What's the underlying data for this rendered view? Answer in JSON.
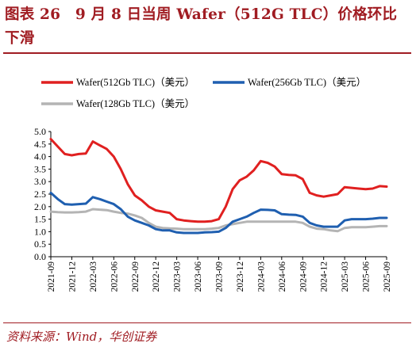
{
  "figure": {
    "title": "图表 26　9 月 8 日当周 Wafer（512G TLC）价格环比下滑",
    "source": "资料来源：Wind，华创证券",
    "accent_color": "#a01c22"
  },
  "chart_data": {
    "type": "line",
    "title": "",
    "xlabel": "",
    "ylabel": "",
    "ylim": [
      0,
      5
    ],
    "yticks": [
      "0.0",
      "0.5",
      "1.0",
      "1.5",
      "2.0",
      "2.5",
      "3.0",
      "3.5",
      "4.0",
      "4.5",
      "5.0"
    ],
    "xticks": [
      "2021-09",
      "2021-12",
      "2022-03",
      "2022-06",
      "2022-09",
      "2022-12",
      "2023-03",
      "2023-06",
      "2023-09",
      "2023-12",
      "2024-03",
      "2024-06",
      "2024-09",
      "2024-12",
      "2025-03",
      "2025-06",
      "2025-09"
    ],
    "x_range": [
      "2021-09",
      "2025-09"
    ],
    "grid": false,
    "legend_position": "top",
    "series": [
      {
        "name": "Wafer(512Gb TLC)（美元）",
        "color": "#e02020",
        "points": [
          [
            "2021-09",
            4.7
          ],
          [
            "2021-10",
            4.4
          ],
          [
            "2021-11",
            4.1
          ],
          [
            "2021-12",
            4.05
          ],
          [
            "2022-01",
            4.1
          ],
          [
            "2022-02",
            4.12
          ],
          [
            "2022-03",
            4.6
          ],
          [
            "2022-04",
            4.45
          ],
          [
            "2022-05",
            4.3
          ],
          [
            "2022-06",
            4.0
          ],
          [
            "2022-07",
            3.5
          ],
          [
            "2022-08",
            2.9
          ],
          [
            "2022-09",
            2.45
          ],
          [
            "2022-10",
            2.25
          ],
          [
            "2022-11",
            2.0
          ],
          [
            "2022-12",
            1.85
          ],
          [
            "2023-01",
            1.8
          ],
          [
            "2023-02",
            1.75
          ],
          [
            "2023-03",
            1.5
          ],
          [
            "2023-04",
            1.45
          ],
          [
            "2023-05",
            1.42
          ],
          [
            "2023-06",
            1.4
          ],
          [
            "2023-07",
            1.4
          ],
          [
            "2023-08",
            1.42
          ],
          [
            "2023-09",
            1.5
          ],
          [
            "2023-10",
            2.0
          ],
          [
            "2023-11",
            2.7
          ],
          [
            "2023-12",
            3.05
          ],
          [
            "2024-01",
            3.2
          ],
          [
            "2024-02",
            3.45
          ],
          [
            "2024-03",
            3.82
          ],
          [
            "2024-04",
            3.75
          ],
          [
            "2024-05",
            3.6
          ],
          [
            "2024-06",
            3.3
          ],
          [
            "2024-07",
            3.27
          ],
          [
            "2024-08",
            3.25
          ],
          [
            "2024-09",
            3.1
          ],
          [
            "2024-10",
            2.55
          ],
          [
            "2024-11",
            2.45
          ],
          [
            "2024-12",
            2.4
          ],
          [
            "2025-01",
            2.45
          ],
          [
            "2025-02",
            2.5
          ],
          [
            "2025-03",
            2.78
          ],
          [
            "2025-04",
            2.75
          ],
          [
            "2025-05",
            2.72
          ],
          [
            "2025-06",
            2.7
          ],
          [
            "2025-07",
            2.72
          ],
          [
            "2025-08",
            2.82
          ],
          [
            "2025-09",
            2.8
          ]
        ]
      },
      {
        "name": "Wafer(256Gb TLC)（美元）",
        "color": "#1f5fb0",
        "points": [
          [
            "2021-09",
            2.55
          ],
          [
            "2021-10",
            2.3
          ],
          [
            "2021-11",
            2.1
          ],
          [
            "2021-12",
            2.08
          ],
          [
            "2022-01",
            2.1
          ],
          [
            "2022-02",
            2.12
          ],
          [
            "2022-03",
            2.38
          ],
          [
            "2022-04",
            2.3
          ],
          [
            "2022-05",
            2.2
          ],
          [
            "2022-06",
            2.1
          ],
          [
            "2022-07",
            1.9
          ],
          [
            "2022-08",
            1.6
          ],
          [
            "2022-09",
            1.45
          ],
          [
            "2022-10",
            1.35
          ],
          [
            "2022-11",
            1.25
          ],
          [
            "2022-12",
            1.1
          ],
          [
            "2023-01",
            1.05
          ],
          [
            "2023-02",
            1.05
          ],
          [
            "2023-03",
            0.97
          ],
          [
            "2023-04",
            0.95
          ],
          [
            "2023-05",
            0.95
          ],
          [
            "2023-06",
            0.95
          ],
          [
            "2023-07",
            0.97
          ],
          [
            "2023-08",
            0.98
          ],
          [
            "2023-09",
            1.0
          ],
          [
            "2023-10",
            1.15
          ],
          [
            "2023-11",
            1.4
          ],
          [
            "2023-12",
            1.5
          ],
          [
            "2024-01",
            1.6
          ],
          [
            "2024-02",
            1.75
          ],
          [
            "2024-03",
            1.88
          ],
          [
            "2024-04",
            1.87
          ],
          [
            "2024-05",
            1.85
          ],
          [
            "2024-06",
            1.7
          ],
          [
            "2024-07",
            1.68
          ],
          [
            "2024-08",
            1.67
          ],
          [
            "2024-09",
            1.6
          ],
          [
            "2024-10",
            1.35
          ],
          [
            "2024-11",
            1.25
          ],
          [
            "2024-12",
            1.2
          ],
          [
            "2025-01",
            1.2
          ],
          [
            "2025-02",
            1.2
          ],
          [
            "2025-03",
            1.45
          ],
          [
            "2025-04",
            1.5
          ],
          [
            "2025-05",
            1.5
          ],
          [
            "2025-06",
            1.5
          ],
          [
            "2025-07",
            1.52
          ],
          [
            "2025-08",
            1.55
          ],
          [
            "2025-09",
            1.55
          ]
        ]
      },
      {
        "name": "Wafer(128Gb TLC)（美元）",
        "color": "#b4b4b4",
        "points": [
          [
            "2021-09",
            1.8
          ],
          [
            "2021-10",
            1.78
          ],
          [
            "2021-11",
            1.77
          ],
          [
            "2021-12",
            1.77
          ],
          [
            "2022-01",
            1.78
          ],
          [
            "2022-02",
            1.8
          ],
          [
            "2022-03",
            1.9
          ],
          [
            "2022-04",
            1.88
          ],
          [
            "2022-05",
            1.86
          ],
          [
            "2022-06",
            1.8
          ],
          [
            "2022-07",
            1.75
          ],
          [
            "2022-08",
            1.72
          ],
          [
            "2022-09",
            1.65
          ],
          [
            "2022-10",
            1.55
          ],
          [
            "2022-11",
            1.35
          ],
          [
            "2022-12",
            1.2
          ],
          [
            "2023-01",
            1.15
          ],
          [
            "2023-02",
            1.13
          ],
          [
            "2023-03",
            1.12
          ],
          [
            "2023-04",
            1.1
          ],
          [
            "2023-05",
            1.1
          ],
          [
            "2023-06",
            1.1
          ],
          [
            "2023-07",
            1.1
          ],
          [
            "2023-08",
            1.12
          ],
          [
            "2023-09",
            1.15
          ],
          [
            "2023-10",
            1.25
          ],
          [
            "2023-11",
            1.3
          ],
          [
            "2023-12",
            1.35
          ],
          [
            "2024-01",
            1.4
          ],
          [
            "2024-02",
            1.4
          ],
          [
            "2024-03",
            1.4
          ],
          [
            "2024-04",
            1.4
          ],
          [
            "2024-05",
            1.4
          ],
          [
            "2024-06",
            1.4
          ],
          [
            "2024-07",
            1.4
          ],
          [
            "2024-08",
            1.4
          ],
          [
            "2024-09",
            1.35
          ],
          [
            "2024-10",
            1.2
          ],
          [
            "2024-11",
            1.12
          ],
          [
            "2024-12",
            1.1
          ],
          [
            "2025-01",
            1.05
          ],
          [
            "2025-02",
            1.02
          ],
          [
            "2025-03",
            1.15
          ],
          [
            "2025-04",
            1.18
          ],
          [
            "2025-05",
            1.18
          ],
          [
            "2025-06",
            1.18
          ],
          [
            "2025-07",
            1.2
          ],
          [
            "2025-08",
            1.22
          ],
          [
            "2025-09",
            1.22
          ]
        ]
      }
    ]
  }
}
